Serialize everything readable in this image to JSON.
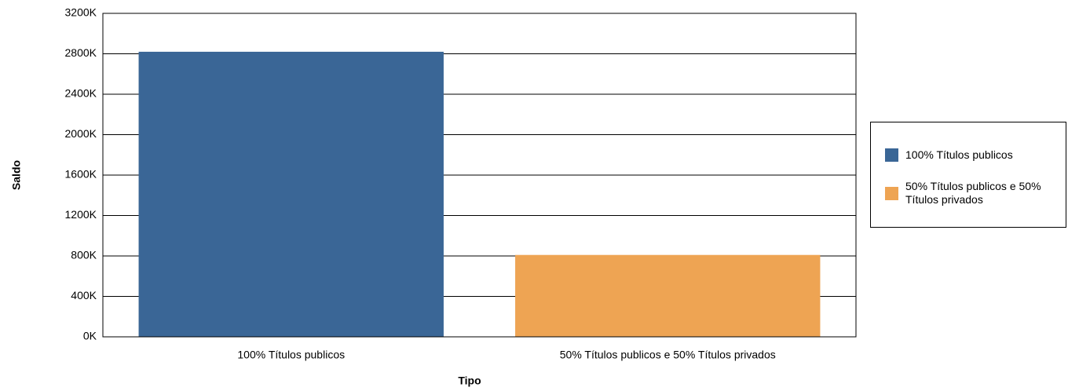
{
  "chart_data": {
    "type": "bar",
    "x_label": "Tipo",
    "y_label": "Saldo",
    "categories": [
      "100% Títulos publicos",
      "50% Títulos publicos e 50% Títulos privados"
    ],
    "series": [
      {
        "name": "100% Títulos publicos",
        "color": "#3a6696",
        "values": [
          2820,
          null
        ]
      },
      {
        "name": "50% Títulos publicos e 50% Títulos privados",
        "color": "#eea453",
        "values": [
          null,
          810
        ]
      }
    ],
    "ylim": [
      0,
      3200
    ],
    "yticks": [
      {
        "value": 0,
        "label": "0K"
      },
      {
        "value": 400,
        "label": "400K"
      },
      {
        "value": 800,
        "label": "800K"
      },
      {
        "value": 1200,
        "label": "1200K"
      },
      {
        "value": 1600,
        "label": "1600K"
      },
      {
        "value": 2000,
        "label": "2000K"
      },
      {
        "value": 2400,
        "label": "2400K"
      },
      {
        "value": 2800,
        "label": "2800K"
      },
      {
        "value": 3200,
        "label": "3200K"
      }
    ],
    "grid": true,
    "legend": "right"
  }
}
